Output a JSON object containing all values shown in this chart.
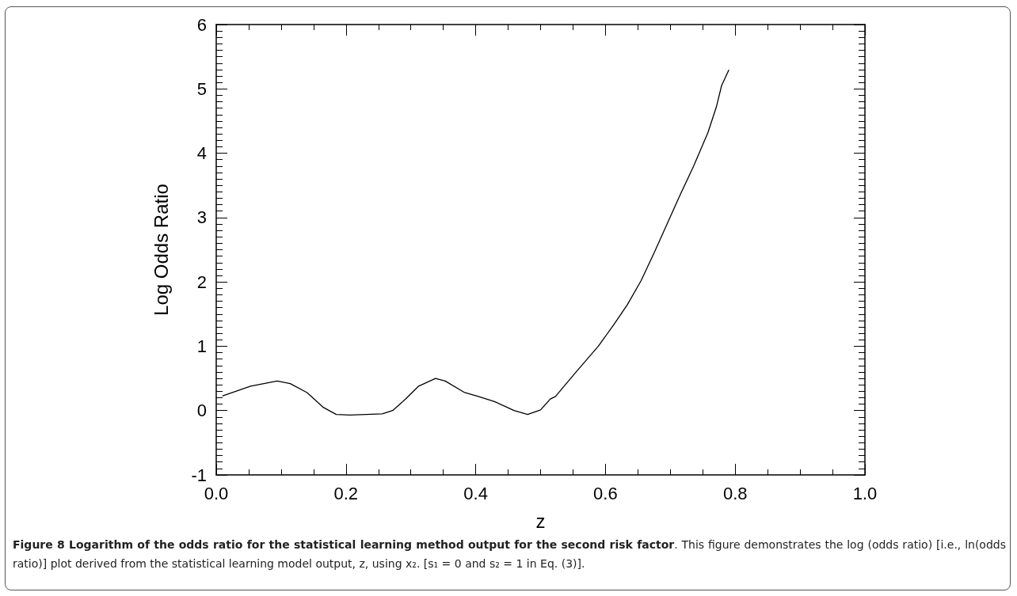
{
  "chart_data": {
    "type": "line",
    "title": "Figure 8 Logarithm of the odds ratio for the statistical learning method output for the second risk factor",
    "subtitle": ". This figure demonstrates the log (odds ratio) [i.e., ln(odds ratio)] plot derived from the statistical learning model output, z, using x₂. [s₁ = 0 and s₂ = 1 in Eq. (3)].",
    "xlabel": "z",
    "ylabel": "Log Odds Ratio",
    "x": [
      0.01,
      0.053,
      0.094,
      0.114,
      0.14,
      0.165,
      0.185,
      0.206,
      0.231,
      0.256,
      0.272,
      0.292,
      0.312,
      0.338,
      0.353,
      0.383,
      0.404,
      0.429,
      0.459,
      0.48,
      0.5,
      0.515,
      0.523,
      0.553,
      0.589,
      0.614,
      0.634,
      0.655,
      0.675,
      0.695,
      0.715,
      0.736,
      0.758,
      0.771,
      0.779,
      0.79
    ],
    "series": [
      {
        "color": "#000000",
        "values": [
          0.23,
          0.38,
          0.46,
          0.42,
          0.28,
          0.05,
          -0.06,
          -0.07,
          -0.06,
          -0.05,
          0,
          0.18,
          0.38,
          0.5,
          0.46,
          0.28,
          0.22,
          0.14,
          0,
          -0.06,
          0.01,
          0.18,
          0.22,
          0.58,
          1.0,
          1.35,
          1.65,
          2.02,
          2.45,
          2.9,
          3.35,
          3.8,
          4.32,
          4.72,
          5.05,
          5.29
        ]
      }
    ],
    "xlim": [
      0,
      1
    ],
    "xticks": [
      {
        "value": 0,
        "label": "0.0"
      },
      0.2,
      0.4,
      0.6,
      0.8,
      {
        "value": 1,
        "label": "1.0"
      }
    ],
    "ylim": [
      -1,
      6
    ],
    "yticks": [
      -1,
      0,
      1,
      2,
      3,
      4,
      5,
      6
    ],
    "grid": false,
    "marker": "none",
    "line_style": "solid"
  }
}
